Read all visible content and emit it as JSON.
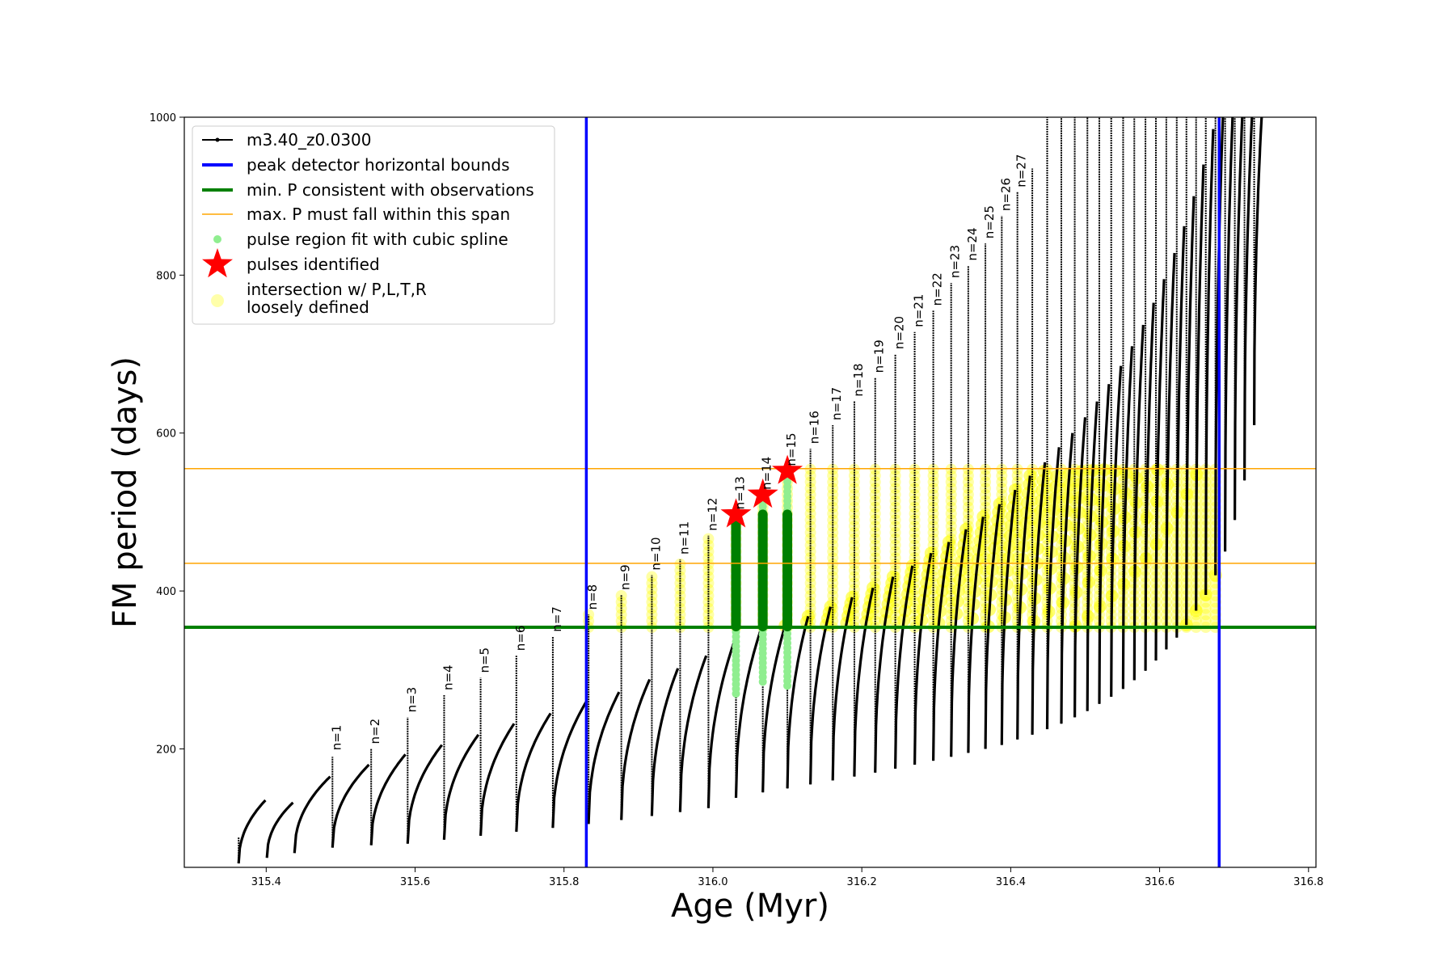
{
  "chart_data": {
    "type": "line",
    "xlabel": "Age (Myr)",
    "ylabel": "FM period (days)",
    "xlim": [
      315.29,
      316.81
    ],
    "ylim": [
      50,
      1000
    ],
    "xticks": [
      315.4,
      315.6,
      315.8,
      316.0,
      316.2,
      316.4,
      316.6,
      316.8
    ],
    "xtick_labels": [
      "315.4",
      "315.6",
      "315.8",
      "316.0",
      "316.2",
      "316.4",
      "316.6",
      "316.8"
    ],
    "yticks": [
      200,
      400,
      600,
      800,
      1000
    ],
    "ytick_labels": [
      "200",
      "400",
      "600",
      "800",
      "1000"
    ],
    "grid": false,
    "legend_position": "top-left",
    "legend": [
      {
        "label": "m3.40_z0.0300",
        "kind": "line-dot",
        "color": "#000000"
      },
      {
        "label": "peak detector horizontal bounds",
        "kind": "line",
        "color": "#0000ff"
      },
      {
        "label": "min. P consistent with observations",
        "kind": "line",
        "color": "#008000"
      },
      {
        "label": "max. P must fall within this span",
        "kind": "thin-line",
        "color": "#ffa500"
      },
      {
        "label": "pulse region fit with cubic spline",
        "kind": "dot",
        "color": "#90ee90"
      },
      {
        "label": "pulses identified",
        "kind": "star",
        "color": "#ff0000"
      },
      {
        "label": "intersection w/ P,L,T,R",
        "label2": "loosely defined",
        "kind": "circle",
        "color": "#ffffaa"
      }
    ],
    "vlines": [
      315.83,
      316.68
    ],
    "min_p": 354,
    "max_p_span": [
      435,
      555
    ],
    "colors": {
      "track": "#000000",
      "bounds": "#0000ff",
      "min_p": "#008000",
      "max_p": "#ffa500",
      "spline": "#90ee90",
      "star": "#ff0000",
      "intersection": "#ffff00",
      "intersection_legend": "#ffffaa"
    },
    "series": [
      {
        "name": "m3.40_z0.0300",
        "cycles": [
          {
            "start": 315.363,
            "end": 315.399,
            "min": 55,
            "peak_min": 135,
            "spike": 88
          },
          {
            "start": 315.401,
            "end": 315.436,
            "min": 62,
            "peak_min": 132,
            "spike": null
          },
          {
            "start": 315.438,
            "end": 315.486,
            "min": 68,
            "peak_min": 165,
            "spike": null
          },
          {
            "start": 315.489,
            "end": 315.538,
            "min": 75,
            "peak_min": 180,
            "spike": 190
          },
          {
            "start": 315.541,
            "end": 315.587,
            "min": 78,
            "peak_min": 193,
            "spike": 200
          },
          {
            "start": 315.59,
            "end": 315.636,
            "min": 80,
            "peak_min": 205,
            "spike": 240
          },
          {
            "start": 315.639,
            "end": 315.685,
            "min": 85,
            "peak_min": 218,
            "spike": 268
          },
          {
            "start": 315.688,
            "end": 315.733,
            "min": 90,
            "peak_min": 232,
            "spike": 290
          },
          {
            "start": 315.736,
            "end": 315.782,
            "min": 95,
            "peak_min": 245,
            "spike": 318
          },
          {
            "start": 315.785,
            "end": 315.83,
            "min": 100,
            "peak_min": 260,
            "spike": 342
          },
          {
            "start": 315.833,
            "end": 315.874,
            "min": 105,
            "peak_min": 272,
            "spike": 370
          },
          {
            "start": 315.877,
            "end": 315.915,
            "min": 110,
            "peak_min": 288,
            "spike": 395
          },
          {
            "start": 315.918,
            "end": 315.953,
            "min": 115,
            "peak_min": 302,
            "spike": 420
          },
          {
            "start": 315.956,
            "end": 315.991,
            "min": 120,
            "peak_min": 318,
            "spike": 440
          },
          {
            "start": 315.994,
            "end": 316.028,
            "min": 125,
            "peak_min": 334,
            "spike": 470
          },
          {
            "start": 316.031,
            "end": 316.064,
            "min": 138,
            "peak_min": 350,
            "spike": 497
          },
          {
            "start": 316.067,
            "end": 316.097,
            "min": 145,
            "peak_min": 356,
            "spike": 522
          },
          {
            "start": 316.1,
            "end": 316.128,
            "min": 150,
            "peak_min": 368,
            "spike": 552
          },
          {
            "start": 316.131,
            "end": 316.158,
            "min": 155,
            "peak_min": 380,
            "spike": 580
          },
          {
            "start": 316.161,
            "end": 316.187,
            "min": 160,
            "peak_min": 392,
            "spike": 610
          },
          {
            "start": 316.19,
            "end": 316.215,
            "min": 165,
            "peak_min": 404,
            "spike": 640
          },
          {
            "start": 316.218,
            "end": 316.242,
            "min": 170,
            "peak_min": 418,
            "spike": 670
          },
          {
            "start": 316.245,
            "end": 316.268,
            "min": 175,
            "peak_min": 432,
            "spike": 700
          },
          {
            "start": 316.271,
            "end": 316.293,
            "min": 180,
            "peak_min": 448,
            "spike": 728
          },
          {
            "start": 316.296,
            "end": 316.317,
            "min": 185,
            "peak_min": 462,
            "spike": 755
          },
          {
            "start": 316.32,
            "end": 316.34,
            "min": 190,
            "peak_min": 478,
            "spike": 790
          },
          {
            "start": 316.343,
            "end": 316.363,
            "min": 195,
            "peak_min": 494,
            "spike": 812
          },
          {
            "start": 316.366,
            "end": 316.385,
            "min": 200,
            "peak_min": 510,
            "spike": 840
          },
          {
            "start": 316.388,
            "end": 316.406,
            "min": 205,
            "peak_min": 528,
            "spike": 875
          },
          {
            "start": 316.409,
            "end": 316.426,
            "min": 212,
            "peak_min": 546,
            "spike": 905
          },
          {
            "start": 316.429,
            "end": 316.446,
            "min": 218,
            "peak_min": 563,
            "spike": 935
          },
          {
            "start": 316.449,
            "end": 316.465,
            "min": 225,
            "peak_min": 582,
            "spike": 1000
          },
          {
            "start": 316.468,
            "end": 316.483,
            "min": 232,
            "peak_min": 600,
            "spike": 1000
          },
          {
            "start": 316.486,
            "end": 316.5,
            "min": 240,
            "peak_min": 620,
            "spike": 1000
          },
          {
            "start": 316.503,
            "end": 316.516,
            "min": 248,
            "peak_min": 640,
            "spike": 1000
          },
          {
            "start": 316.519,
            "end": 316.532,
            "min": 257,
            "peak_min": 662,
            "spike": 1000
          },
          {
            "start": 316.535,
            "end": 316.548,
            "min": 266,
            "peak_min": 685,
            "spike": 1000
          },
          {
            "start": 316.551,
            "end": 316.563,
            "min": 276,
            "peak_min": 710,
            "spike": 1000
          },
          {
            "start": 316.566,
            "end": 316.578,
            "min": 287,
            "peak_min": 737,
            "spike": 1000
          },
          {
            "start": 316.581,
            "end": 316.592,
            "min": 299,
            "peak_min": 765,
            "spike": 1000
          },
          {
            "start": 316.595,
            "end": 316.606,
            "min": 312,
            "peak_min": 795,
            "spike": 1000
          },
          {
            "start": 316.609,
            "end": 316.62,
            "min": 326,
            "peak_min": 828,
            "spike": 1000
          },
          {
            "start": 316.623,
            "end": 316.633,
            "min": 341,
            "peak_min": 862,
            "spike": 1000
          },
          {
            "start": 316.636,
            "end": 316.646,
            "min": 357,
            "peak_min": 900,
            "spike": 1000
          },
          {
            "start": 316.649,
            "end": 316.659,
            "min": 375,
            "peak_min": 940,
            "spike": 1000
          },
          {
            "start": 316.662,
            "end": 316.672,
            "min": 395,
            "peak_min": 985,
            "spike": 1000
          },
          {
            "start": 316.675,
            "end": 316.685,
            "min": 420,
            "peak_min": 1000,
            "spike": 1000
          },
          {
            "start": 316.688,
            "end": 316.698,
            "min": 450,
            "peak_min": 1000,
            "spike": 1000
          },
          {
            "start": 316.701,
            "end": 316.711,
            "min": 490,
            "peak_min": 1000,
            "spike": 1000
          },
          {
            "start": 316.714,
            "end": 316.724,
            "min": 540,
            "peak_min": 1000,
            "spike": 1000
          },
          {
            "start": 316.727,
            "end": 316.737,
            "min": 610,
            "peak_min": 1000,
            "spike": 1000
          }
        ]
      }
    ],
    "pulse_labels": [
      {
        "text": "n=1",
        "x": 315.489,
        "y": 192
      },
      {
        "text": "n=2",
        "x": 315.541,
        "y": 200
      },
      {
        "text": "n=3",
        "x": 315.59,
        "y": 240
      },
      {
        "text": "n=4",
        "x": 315.639,
        "y": 268
      },
      {
        "text": "n=5",
        "x": 315.688,
        "y": 290
      },
      {
        "text": "n=6",
        "x": 315.736,
        "y": 318
      },
      {
        "text": "n=7",
        "x": 315.785,
        "y": 342
      },
      {
        "text": "n=8",
        "x": 315.833,
        "y": 370
      },
      {
        "text": "n=9",
        "x": 315.877,
        "y": 395
      },
      {
        "text": "n=10",
        "x": 315.918,
        "y": 420
      },
      {
        "text": "n=11",
        "x": 315.956,
        "y": 440
      },
      {
        "text": "n=12",
        "x": 315.994,
        "y": 470
      },
      {
        "text": "n=13",
        "x": 316.031,
        "y": 497
      },
      {
        "text": "n=14",
        "x": 316.067,
        "y": 522
      },
      {
        "text": "n=15",
        "x": 316.1,
        "y": 552
      },
      {
        "text": "n=16",
        "x": 316.131,
        "y": 580
      },
      {
        "text": "n=17",
        "x": 316.161,
        "y": 610
      },
      {
        "text": "n=18",
        "x": 316.19,
        "y": 640
      },
      {
        "text": "n=19",
        "x": 316.218,
        "y": 670
      },
      {
        "text": "n=20",
        "x": 316.245,
        "y": 700
      },
      {
        "text": "n=21",
        "x": 316.271,
        "y": 728
      },
      {
        "text": "n=22",
        "x": 316.296,
        "y": 755
      },
      {
        "text": "n=23",
        "x": 316.32,
        "y": 790
      },
      {
        "text": "n=24",
        "x": 316.343,
        "y": 812
      },
      {
        "text": "n=25",
        "x": 316.366,
        "y": 840
      },
      {
        "text": "n=26",
        "x": 316.388,
        "y": 875
      },
      {
        "text": "n=27",
        "x": 316.409,
        "y": 905
      }
    ],
    "pulses_identified": [
      {
        "x": 316.031,
        "y": 497
      },
      {
        "x": 316.067,
        "y": 522
      },
      {
        "x": 316.1,
        "y": 552
      }
    ],
    "spline_regions": [
      {
        "x": 316.031,
        "y_low": 270,
        "y_high": 497
      },
      {
        "x": 316.067,
        "y_low": 285,
        "y_high": 522
      },
      {
        "x": 316.1,
        "y_low": 280,
        "y_high": 552
      }
    ],
    "green_pulse_segments": [
      {
        "x": 316.031,
        "y_low": 355,
        "y_high": 497
      },
      {
        "x": 316.067,
        "y_low": 355,
        "y_high": 497
      },
      {
        "x": 316.1,
        "y_low": 355,
        "y_high": 497
      }
    ]
  }
}
